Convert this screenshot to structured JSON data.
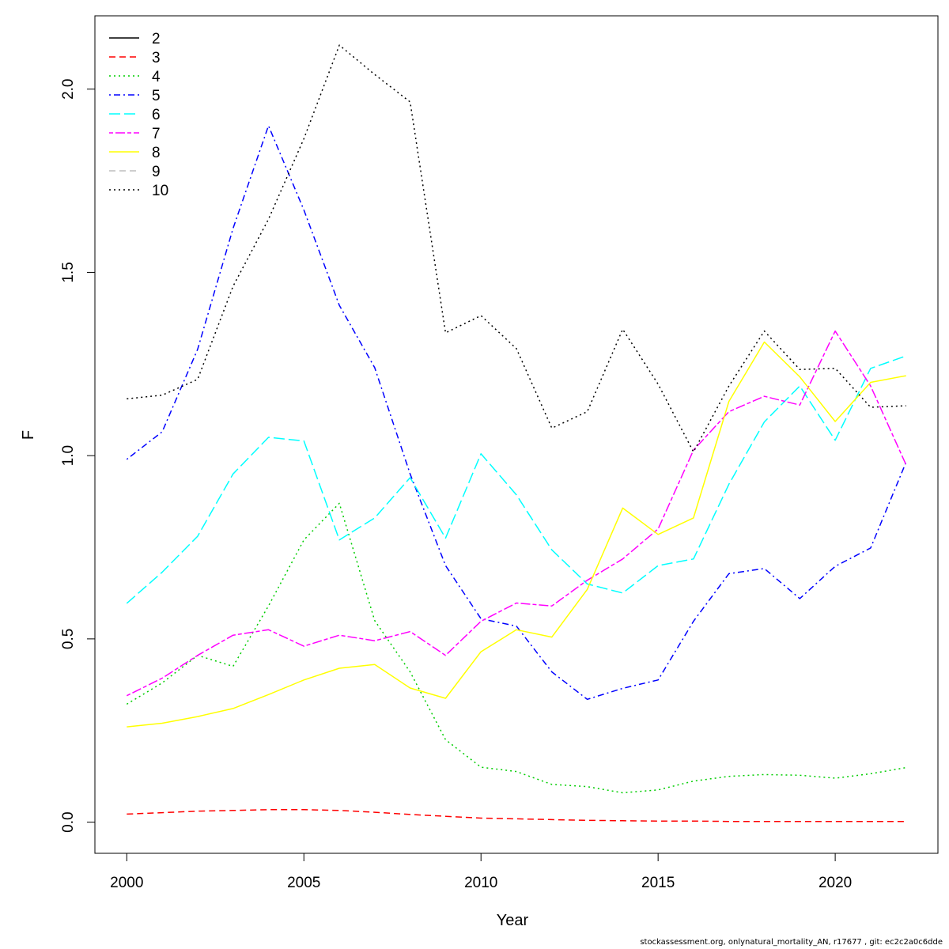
{
  "chart_data": {
    "type": "line",
    "title": "",
    "xlabel": "Year",
    "ylabel": "F",
    "xlim": [
      1999.1,
      2022.9
    ],
    "ylim": [
      -0.085,
      2.2
    ],
    "x_ticks": [
      2000,
      2005,
      2010,
      2015,
      2020
    ],
    "x_tick_labels": [
      "2000",
      "2005",
      "2010",
      "2015",
      "2020"
    ],
    "y_ticks": [
      0,
      0.5,
      1,
      1.5,
      2
    ],
    "y_tick_labels": [
      "0.0",
      "0.5",
      "1.0",
      "1.5",
      "2.0"
    ],
    "grid": false,
    "legend_position": "top-left",
    "x": [
      2000,
      2001,
      2002,
      2003,
      2004,
      2005,
      2006,
      2007,
      2008,
      2009,
      2010,
      2011,
      2012,
      2013,
      2014,
      2015,
      2016,
      2017,
      2018,
      2019,
      2020,
      2021,
      2022
    ],
    "series": [
      {
        "name": "2",
        "color": "#000000",
        "dash": "solid",
        "values": null
      },
      {
        "name": "3",
        "color": "#ff0000",
        "dash": "dashed",
        "values": [
          0.022,
          0.026,
          0.03,
          0.032,
          0.034,
          0.034,
          0.032,
          0.027,
          0.021,
          0.016,
          0.011,
          0.009,
          0.007,
          0.005,
          0.004,
          0.003,
          0.003,
          0.002,
          0.002,
          0.002,
          0.002,
          0.002,
          0.002
        ]
      },
      {
        "name": "4",
        "color": "#00cd00",
        "dash": "dotted",
        "values": [
          0.322,
          0.38,
          0.455,
          0.425,
          0.59,
          0.77,
          0.87,
          0.55,
          0.41,
          0.225,
          0.15,
          0.138,
          0.103,
          0.097,
          0.08,
          0.088,
          0.112,
          0.125,
          0.13,
          0.128,
          0.12,
          0.132,
          0.149
        ]
      },
      {
        "name": "5",
        "color": "#0000ff",
        "dash": "dotdash",
        "values": [
          0.99,
          1.065,
          1.29,
          1.62,
          1.9,
          1.67,
          1.41,
          1.24,
          0.95,
          0.7,
          0.555,
          0.535,
          0.41,
          0.335,
          0.365,
          0.388,
          0.548,
          0.678,
          0.692,
          0.61,
          0.698,
          0.748,
          0.982
        ]
      },
      {
        "name": "6",
        "color": "#00ffff",
        "dash": "longdash",
        "values": [
          0.597,
          0.682,
          0.78,
          0.95,
          1.05,
          1.04,
          0.77,
          0.83,
          0.94,
          0.775,
          1.005,
          0.893,
          0.743,
          0.65,
          0.625,
          0.7,
          0.718,
          0.922,
          1.092,
          1.19,
          1.042,
          1.238,
          1.272
        ]
      },
      {
        "name": "7",
        "color": "#ff00ff",
        "dash": "twodash",
        "values": [
          0.345,
          0.393,
          0.455,
          0.51,
          0.525,
          0.48,
          0.51,
          0.495,
          0.52,
          0.455,
          0.548,
          0.598,
          0.59,
          0.66,
          0.718,
          0.8,
          1.015,
          1.12,
          1.162,
          1.138,
          1.34,
          1.19,
          0.975
        ]
      },
      {
        "name": "8",
        "color": "#ffff00",
        "dash": "solid",
        "values": [
          0.26,
          0.27,
          0.288,
          0.31,
          0.348,
          0.388,
          0.42,
          0.43,
          0.366,
          0.338,
          0.465,
          0.525,
          0.505,
          0.635,
          0.857,
          0.785,
          0.83,
          1.148,
          1.31,
          1.215,
          1.093,
          1.2,
          1.218
        ]
      },
      {
        "name": "9",
        "color": "#bebebe",
        "dash": "dashed",
        "values": null
      },
      {
        "name": "10",
        "color": "#000000",
        "dash": "dotted",
        "values": [
          1.155,
          1.165,
          1.208,
          1.462,
          1.645,
          1.865,
          2.12,
          2.04,
          1.965,
          1.335,
          1.382,
          1.292,
          1.075,
          1.12,
          1.345,
          1.195,
          1.01,
          1.19,
          1.34,
          1.235,
          1.238,
          1.132,
          1.136
        ]
      }
    ]
  },
  "footer": "stockassessment.org, onlynatural_mortality_AN, r17677 , git: ec2c2a0c6dde"
}
